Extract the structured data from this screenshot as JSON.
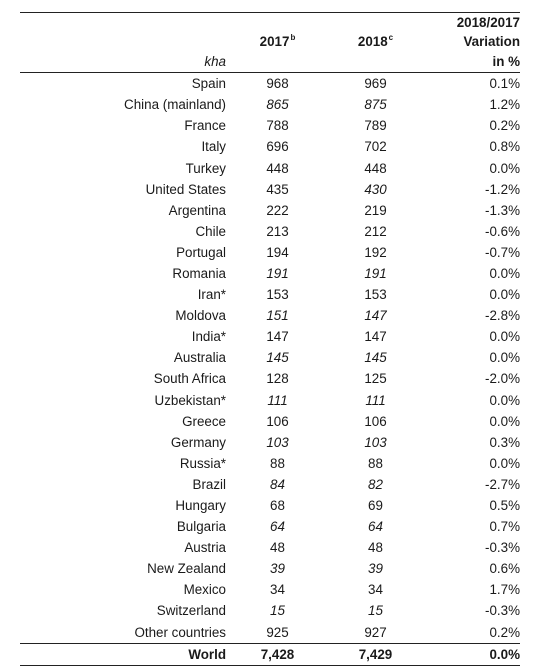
{
  "table": {
    "headers": {
      "unit": "kha",
      "col_2017": "2017",
      "col_2017_sup": "b",
      "col_2018": "2018",
      "col_2018_sup": "c",
      "variation_line1": "2018/2017",
      "variation_line2": "Variation",
      "variation_line3": "in %"
    },
    "rows": [
      {
        "country": "Spain",
        "v2017": "968",
        "v2018": "969",
        "variation": "0.1%",
        "italic2017": false,
        "italic2018": false
      },
      {
        "country": "China (mainland)",
        "v2017": "865",
        "v2018": "875",
        "variation": "1.2%",
        "italic2017": true,
        "italic2018": true
      },
      {
        "country": "France",
        "v2017": "788",
        "v2018": "789",
        "variation": "0.2%",
        "italic2017": false,
        "italic2018": false
      },
      {
        "country": "Italy",
        "v2017": "696",
        "v2018": "702",
        "variation": "0.8%",
        "italic2017": false,
        "italic2018": false
      },
      {
        "country": "Turkey",
        "v2017": "448",
        "v2018": "448",
        "variation": "0.0%",
        "italic2017": false,
        "italic2018": false
      },
      {
        "country": "United States",
        "v2017": "435",
        "v2018": "430",
        "variation": "-1.2%",
        "italic2017": false,
        "italic2018": true
      },
      {
        "country": "Argentina",
        "v2017": "222",
        "v2018": "219",
        "variation": "-1.3%",
        "italic2017": false,
        "italic2018": false
      },
      {
        "country": "Chile",
        "v2017": "213",
        "v2018": "212",
        "variation": "-0.6%",
        "italic2017": false,
        "italic2018": false
      },
      {
        "country": "Portugal",
        "v2017": "194",
        "v2018": "192",
        "variation": "-0.7%",
        "italic2017": false,
        "italic2018": false
      },
      {
        "country": "Romania",
        "v2017": "191",
        "v2018": "191",
        "variation": "0.0%",
        "italic2017": true,
        "italic2018": true
      },
      {
        "country": "Iran*",
        "v2017": "153",
        "v2018": "153",
        "variation": "0.0%",
        "italic2017": false,
        "italic2018": false
      },
      {
        "country": "Moldova",
        "v2017": "151",
        "v2018": "147",
        "variation": "-2.8%",
        "italic2017": true,
        "italic2018": true
      },
      {
        "country": "India*",
        "v2017": "147",
        "v2018": "147",
        "variation": "0.0%",
        "italic2017": false,
        "italic2018": false
      },
      {
        "country": "Australia",
        "v2017": "145",
        "v2018": "145",
        "variation": "0.0%",
        "italic2017": true,
        "italic2018": true
      },
      {
        "country": "South Africa",
        "v2017": "128",
        "v2018": "125",
        "variation": "-2.0%",
        "italic2017": false,
        "italic2018": false
      },
      {
        "country": "Uzbekistan*",
        "v2017": "111",
        "v2018": "111",
        "variation": "0.0%",
        "italic2017": true,
        "italic2018": true
      },
      {
        "country": "Greece",
        "v2017": "106",
        "v2018": "106",
        "variation": "0.0%",
        "italic2017": false,
        "italic2018": false
      },
      {
        "country": "Germany",
        "v2017": "103",
        "v2018": "103",
        "variation": "0.3%",
        "italic2017": true,
        "italic2018": true
      },
      {
        "country": "Russia*",
        "v2017": "88",
        "v2018": "88",
        "variation": "0.0%",
        "italic2017": false,
        "italic2018": false
      },
      {
        "country": "Brazil",
        "v2017": "84",
        "v2018": "82",
        "variation": "-2.7%",
        "italic2017": true,
        "italic2018": true
      },
      {
        "country": "Hungary",
        "v2017": "68",
        "v2018": "69",
        "variation": "0.5%",
        "italic2017": false,
        "italic2018": false
      },
      {
        "country": "Bulgaria",
        "v2017": "64",
        "v2018": "64",
        "variation": "0.7%",
        "italic2017": true,
        "italic2018": true
      },
      {
        "country": "Austria",
        "v2017": "48",
        "v2018": "48",
        "variation": "-0.3%",
        "italic2017": false,
        "italic2018": false
      },
      {
        "country": "New Zealand",
        "v2017": "39",
        "v2018": "39",
        "variation": "0.6%",
        "italic2017": true,
        "italic2018": true
      },
      {
        "country": "Mexico",
        "v2017": "34",
        "v2018": "34",
        "variation": "1.7%",
        "italic2017": false,
        "italic2018": false
      },
      {
        "country": "Switzerland",
        "v2017": "15",
        "v2018": "15",
        "variation": "-0.3%",
        "italic2017": true,
        "italic2018": true
      },
      {
        "country": "Other countries",
        "v2017": "925",
        "v2018": "927",
        "variation": "0.2%",
        "italic2017": false,
        "italic2018": false
      }
    ],
    "total": {
      "country": "World",
      "v2017": "7,428",
      "v2018": "7,429",
      "variation": "0.0%"
    }
  }
}
